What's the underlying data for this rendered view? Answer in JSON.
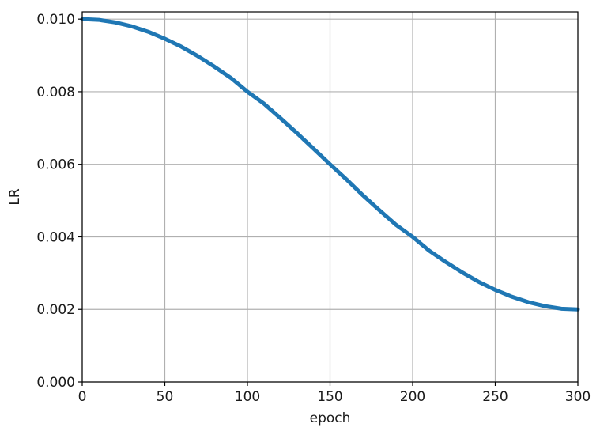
{
  "chart_data": {
    "type": "line",
    "xlabel": "epoch",
    "ylabel": "LR",
    "xlim": [
      0,
      300
    ],
    "ylim": [
      0.0,
      0.0102
    ],
    "x_ticks": [
      0,
      50,
      100,
      150,
      200,
      250,
      300
    ],
    "x_tick_labels": [
      "0",
      "50",
      "100",
      "150",
      "200",
      "250",
      "300"
    ],
    "y_ticks": [
      0.0,
      0.002,
      0.004,
      0.006,
      0.008,
      0.01
    ],
    "y_tick_labels": [
      "0.000",
      "0.002",
      "0.004",
      "0.006",
      "0.008",
      "0.010"
    ],
    "grid": true,
    "series": [
      {
        "color": "#1f77b4",
        "x": [
          0,
          10,
          20,
          30,
          40,
          50,
          60,
          70,
          80,
          90,
          100,
          110,
          120,
          130,
          140,
          150,
          160,
          170,
          180,
          190,
          200,
          210,
          220,
          230,
          240,
          250,
          260,
          270,
          280,
          290,
          300
        ],
        "y": [
          0.01,
          0.00998,
          0.00991,
          0.0098,
          0.00965,
          0.00946,
          0.00924,
          0.00898,
          0.00869,
          0.00838,
          0.008,
          0.00767,
          0.00727,
          0.00686,
          0.00643,
          0.006,
          0.00558,
          0.00514,
          0.00473,
          0.00433,
          0.004,
          0.00362,
          0.00331,
          0.00302,
          0.00276,
          0.00254,
          0.00235,
          0.0022,
          0.00209,
          0.00202,
          0.002
        ]
      }
    ]
  }
}
